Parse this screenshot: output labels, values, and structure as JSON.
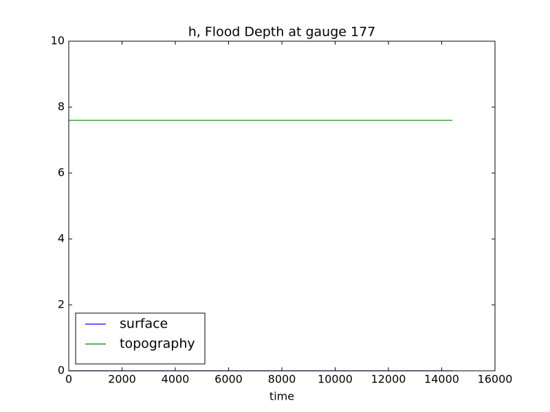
{
  "chart_data": {
    "type": "line",
    "title": "h, Flood Depth at gauge 177",
    "xlabel": "time",
    "x": [
      0,
      14400
    ],
    "series": [
      {
        "name": "surface",
        "color": "#0000ff",
        "values": [
          0,
          0
        ]
      },
      {
        "name": "topography",
        "color": "#008000",
        "values": [
          7.6,
          7.6
        ]
      }
    ],
    "xlim": [
      0,
      16000
    ],
    "xticks": [
      0,
      2000,
      4000,
      6000,
      8000,
      10000,
      12000,
      14000,
      16000
    ],
    "ylim": [
      0,
      10
    ],
    "yticks": [
      0,
      2,
      4,
      6,
      8,
      10
    ],
    "grid": false,
    "legend": "lower left"
  }
}
